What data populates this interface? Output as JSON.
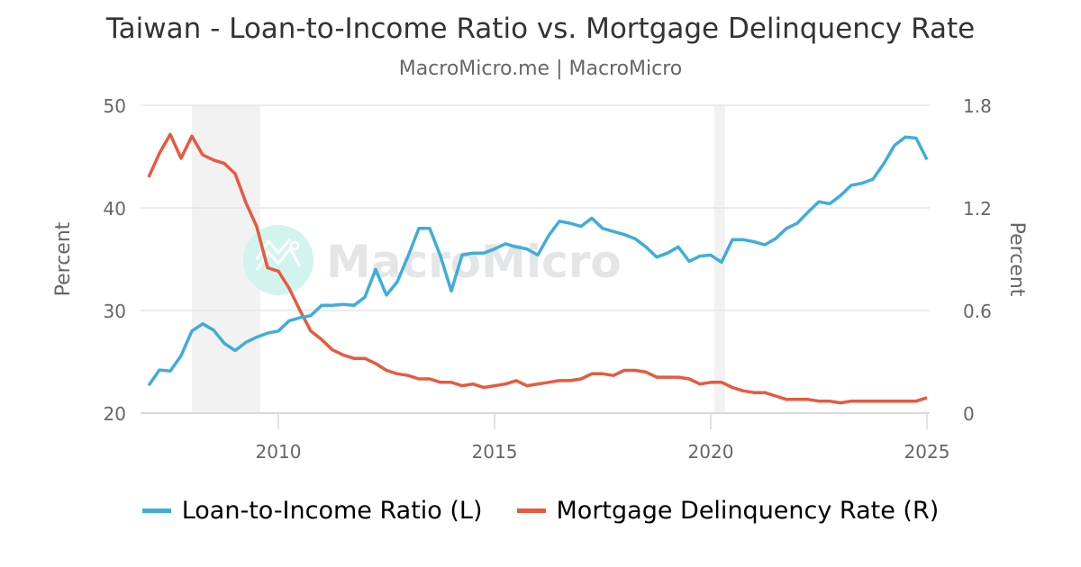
{
  "header": {
    "title": "Taiwan - Loan-to-Income Ratio vs. Mortgage Delinquency Rate",
    "subtitle": "MacroMicro.me | MacroMicro"
  },
  "watermark": {
    "text": "MacroMicro"
  },
  "axes": {
    "left_label": "Percent",
    "right_label": "Percent",
    "left_ticks": [
      "50",
      "40",
      "30",
      "20"
    ],
    "right_ticks": [
      "1.8",
      "1.2",
      "0.6",
      "0"
    ],
    "x_ticks": [
      "2010",
      "2015",
      "2020",
      "2025"
    ]
  },
  "legend": {
    "items": [
      {
        "label": "Loan-to-Income Ratio (L)",
        "color": "#3fadd9"
      },
      {
        "label": "Mortgage Delinquency Rate (R)",
        "color": "#e65a3e"
      }
    ]
  },
  "chart_data": {
    "type": "line",
    "title": "Taiwan - Loan-to-Income Ratio vs. Mortgage Delinquency Rate",
    "subtitle": "MacroMicro.me | MacroMicro",
    "xlabel": "",
    "ylabel_left": "Percent",
    "ylabel_right": "Percent",
    "ylim_left": [
      20,
      50
    ],
    "ylim_right": [
      0,
      1.8
    ],
    "xlim": [
      2006.83,
      2025.0
    ],
    "x_start": 2007.0,
    "x_step": 0.25,
    "grid": true,
    "legend_position": "bottom",
    "shaded_periods": [
      [
        2008.0,
        2009.58
      ],
      [
        2020.08,
        2020.33
      ]
    ],
    "series": [
      {
        "name": "Loan-to-Income Ratio (L)",
        "axis": "left",
        "color": "#3fadd9",
        "values": [
          22.7,
          24.2,
          24.1,
          25.6,
          28.0,
          28.7,
          28.1,
          26.8,
          26.1,
          26.9,
          27.4,
          27.8,
          28.0,
          29.0,
          29.3,
          29.5,
          30.5,
          30.5,
          30.6,
          30.5,
          31.3,
          34.0,
          31.5,
          32.8,
          35.3,
          38.0,
          38.0,
          35.3,
          31.9,
          35.4,
          35.6,
          35.6,
          36.0,
          36.5,
          36.2,
          36.0,
          35.4,
          37.3,
          38.7,
          38.5,
          38.2,
          39.0,
          38.0,
          37.7,
          37.4,
          37.0,
          36.2,
          35.2,
          35.6,
          36.2,
          34.8,
          35.3,
          35.4,
          34.7,
          36.9,
          36.9,
          36.7,
          36.4,
          37.0,
          38.0,
          38.5,
          39.6,
          40.6,
          40.4,
          41.2,
          42.2,
          42.4,
          42.8,
          44.3,
          46.1,
          46.9,
          46.8,
          44.7
        ]
      },
      {
        "name": "Mortgage Delinquency Rate (R)",
        "axis": "right",
        "color": "#e65a3e",
        "values": [
          1.38,
          1.52,
          1.63,
          1.49,
          1.62,
          1.51,
          1.48,
          1.46,
          1.4,
          1.23,
          1.09,
          0.85,
          0.83,
          0.73,
          0.6,
          0.48,
          0.43,
          0.37,
          0.34,
          0.32,
          0.32,
          0.29,
          0.25,
          0.23,
          0.22,
          0.2,
          0.2,
          0.18,
          0.18,
          0.16,
          0.17,
          0.15,
          0.16,
          0.17,
          0.19,
          0.16,
          0.17,
          0.18,
          0.19,
          0.19,
          0.2,
          0.23,
          0.23,
          0.22,
          0.25,
          0.25,
          0.24,
          0.21,
          0.21,
          0.21,
          0.2,
          0.17,
          0.18,
          0.18,
          0.15,
          0.13,
          0.12,
          0.12,
          0.1,
          0.08,
          0.08,
          0.08,
          0.07,
          0.07,
          0.06,
          0.07,
          0.07,
          0.07,
          0.07,
          0.07,
          0.07,
          0.07,
          0.09
        ]
      }
    ]
  }
}
